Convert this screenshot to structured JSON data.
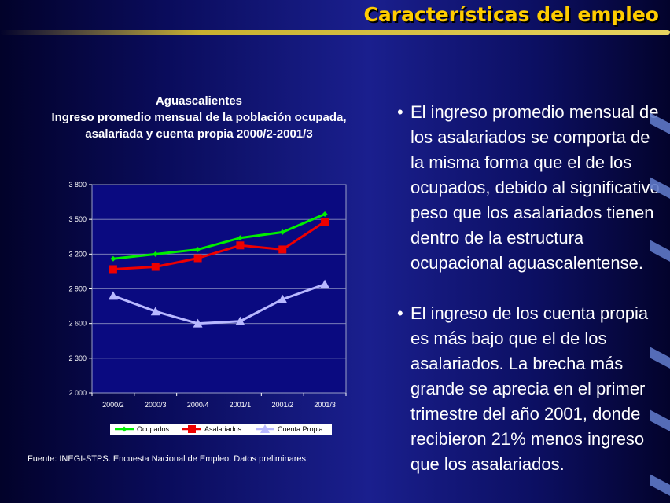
{
  "header": {
    "title": "Características del empleo"
  },
  "chart_title": {
    "line1": "Aguascalientes",
    "line2": "Ingreso promedio mensual de  la población ocupada,",
    "line3": "asalariada y cuenta propia 2000/2-2001/3"
  },
  "bullets": [
    {
      "dot": "•",
      "lines": [
        "El ingreso promedio mensual de",
        "los asalariados se comporta de",
        "la misma forma que el de los",
        "ocupados, debido al significativo",
        "peso que los asalariados tienen",
        "dentro de la estructura",
        "ocupacional aguascalentense."
      ]
    },
    {
      "dot": "•",
      "lines": [
        "El ingreso de los cuenta propia",
        "es más bajo que el de los",
        "asalariados. La brecha más",
        "grande se aprecia en el primer",
        "trimestre del año 2001, donde",
        "recibieron 21% menos ingreso",
        "que los asalariados."
      ]
    }
  ],
  "footnote": "Fuente: INEGI-STPS.  Encuesta Nacional de Empleo. Datos preliminares.",
  "colors": {
    "title_yellow": "#ffcc00",
    "ocupados": "#00ee00",
    "asalariados": "#ee0000",
    "cuenta_propia": "#b8b8ff",
    "plot_background": "#0a0a80"
  },
  "chart_data": {
    "type": "line",
    "title": "",
    "xlabel": "",
    "ylabel": "",
    "categories": [
      "2000/2",
      "2000/3",
      "2000/4",
      "2001/1",
      "2001/2",
      "2001/3"
    ],
    "ylim": [
      2000,
      3800
    ],
    "yticks": [
      2000,
      2300,
      2600,
      2900,
      3200,
      3500,
      3800
    ],
    "ytick_labels": [
      "2 000",
      "2 300",
      "2 600",
      "2 900",
      "3 200",
      "3 500",
      "3 800"
    ],
    "grid": true,
    "legend": "bottom",
    "series": [
      {
        "name": "Ocupados",
        "marker": "diamond",
        "color": "#00ee00",
        "values": [
          3160,
          3200,
          3240,
          3340,
          3390,
          3545
        ]
      },
      {
        "name": "Asalariados",
        "marker": "square",
        "color": "#ee0000",
        "values": [
          3070,
          3090,
          3165,
          3275,
          3240,
          3480
        ]
      },
      {
        "name": "Cuenta Propia",
        "marker": "triangle",
        "color": "#b8b8ff",
        "values": [
          2840,
          2705,
          2600,
          2620,
          2810,
          2940
        ]
      }
    ]
  }
}
